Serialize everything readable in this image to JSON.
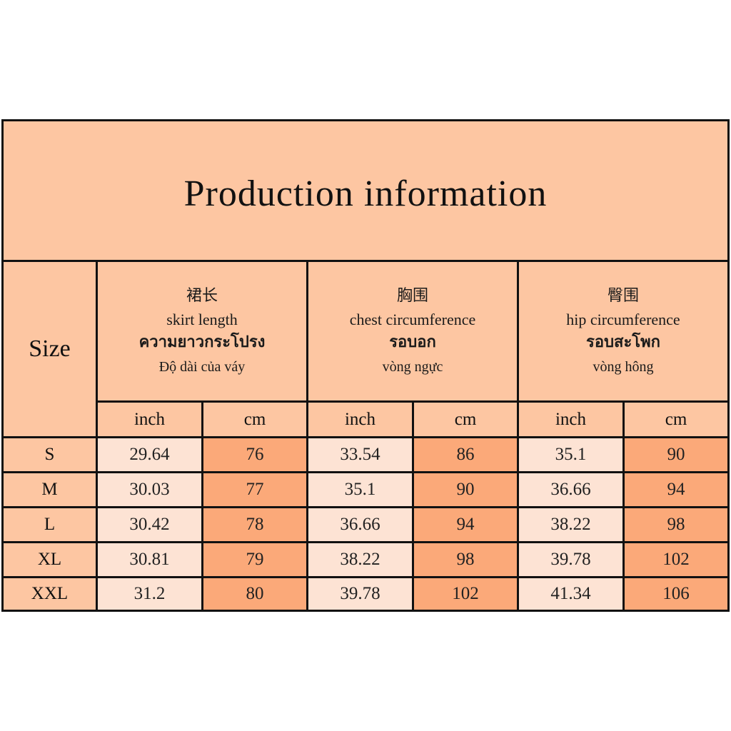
{
  "title": "Production information",
  "size_header": "Size",
  "groups": [
    {
      "zh": "裙长",
      "en": "skirt length",
      "th": "ความยาวกระโปรง",
      "vi": "Độ dài của váy"
    },
    {
      "zh": "胸围",
      "en": "chest circumference",
      "th": "รอบอก",
      "vi": "vòng ngực"
    },
    {
      "zh": "臀围",
      "en": "hip circumference",
      "th": "รอบสะโพก",
      "vi": "vòng hông"
    }
  ],
  "units": [
    "inch",
    "cm",
    "inch",
    "cm",
    "inch",
    "cm"
  ],
  "rows": [
    {
      "size": "S",
      "values": [
        "29.64",
        "76",
        "33.54",
        "86",
        "35.1",
        "90"
      ]
    },
    {
      "size": "M",
      "values": [
        "30.03",
        "77",
        "35.1",
        "90",
        "36.66",
        "94"
      ]
    },
    {
      "size": "L",
      "values": [
        "30.42",
        "78",
        "36.66",
        "94",
        "38.22",
        "98"
      ]
    },
    {
      "size": "XL",
      "values": [
        "30.81",
        "79",
        "38.22",
        "98",
        "39.78",
        "102"
      ]
    },
    {
      "size": "XXL",
      "values": [
        "31.2",
        "80",
        "39.78",
        "102",
        "41.34",
        "106"
      ]
    }
  ],
  "colors": {
    "header": "#fdc6a2",
    "inch_cell": "#fde3d4",
    "cm_cell": "#fba979",
    "border": "#111111"
  }
}
